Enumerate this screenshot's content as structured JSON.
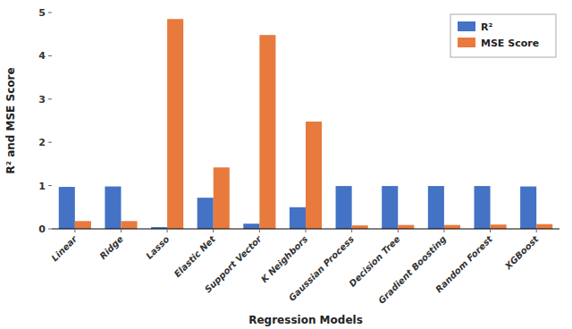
{
  "chart_data": {
    "type": "bar",
    "xlabel": "Regression Models",
    "ylabel": "R² and MSE Score",
    "categories": [
      "Linear",
      "Ridge",
      "Lasso",
      "Elastic Net",
      "Support Vector",
      "K Neighbors",
      "Gaussian Process",
      "Decision Tree",
      "Gradient Boosting",
      "Random Forest",
      "XGBoost"
    ],
    "series": [
      {
        "name": "R²",
        "color": "#4472C4",
        "values": [
          0.97,
          0.98,
          0.04,
          0.72,
          0.12,
          0.5,
          0.99,
          0.99,
          0.99,
          0.99,
          0.98
        ]
      },
      {
        "name": "MSE Score",
        "color": "#E87A3E",
        "values": [
          0.18,
          0.18,
          4.85,
          1.42,
          4.48,
          2.48,
          0.08,
          0.09,
          0.09,
          0.1,
          0.11
        ]
      }
    ],
    "ylim": [
      0,
      5
    ],
    "yticks": [
      0,
      1,
      2,
      3,
      4,
      5
    ],
    "grid": false,
    "legend": "upper right"
  }
}
